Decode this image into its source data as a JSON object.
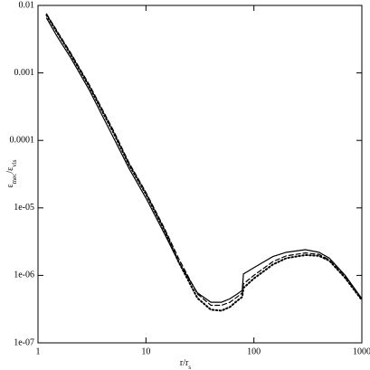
{
  "chart_data": {
    "type": "line",
    "xlabel": [
      "r/r",
      "s"
    ],
    "ylabel": [
      "ε",
      "mec",
      "/ε",
      "vis"
    ],
    "xscale": "log",
    "yscale": "log",
    "xlim": [
      1,
      1000
    ],
    "ylim": [
      1e-07,
      0.01
    ],
    "xticks": [
      1,
      10,
      100,
      1000
    ],
    "yticks": [
      0.01,
      0.001,
      0.0001,
      {
        "value": 1e-05,
        "label": "1e-05"
      },
      {
        "value": 1e-06,
        "label": "1e-06"
      },
      {
        "value": 1e-07,
        "label": "1e-07"
      }
    ],
    "x": [
      1.2,
      1.5,
      2,
      3,
      5,
      7,
      10,
      15,
      20,
      30,
      40,
      50,
      60,
      70,
      78,
      80,
      100,
      150,
      200,
      300,
      400,
      500,
      700,
      1000
    ],
    "series": [
      {
        "color": "#000000",
        "dash": "solid",
        "values": [
          0.0065,
          0.0035,
          0.0017,
          0.00055,
          0.00011,
          3.8e-05,
          1.4e-05,
          4e-06,
          1.6e-06,
          5.5e-07,
          4e-07,
          4e-07,
          4.5e-07,
          5.3e-07,
          6e-07,
          1.05e-06,
          1.3e-06,
          1.9e-06,
          2.2e-06,
          2.4e-06,
          2.2e-06,
          1.8e-06,
          1e-06,
          4.5e-07
        ]
      },
      {
        "color": "#000000",
        "dash": "dashed",
        "values": [
          0.0075,
          0.0042,
          0.002,
          0.00066,
          0.00014,
          4.6e-05,
          1.7e-05,
          4.8e-06,
          1.8e-06,
          5.3e-07,
          3.6e-07,
          3.6e-07,
          4e-07,
          4.8e-07,
          5.5e-07,
          7.5e-07,
          1e-06,
          1.6e-06,
          1.95e-06,
          2.15e-06,
          2.05e-06,
          1.7e-06,
          9.5e-07,
          4.4e-07
        ]
      },
      {
        "color": "#000000",
        "dash": "dotted",
        "values": [
          0.0072,
          0.004,
          0.0019,
          0.00062,
          0.00013,
          4.3e-05,
          1.6e-05,
          4.5e-06,
          1.6e-06,
          4.6e-07,
          3.1e-07,
          3e-07,
          3.4e-07,
          4.2e-07,
          4.8e-07,
          6.5e-07,
          9e-07,
          1.45e-06,
          1.8e-06,
          2e-06,
          1.95e-06,
          1.65e-06,
          9.2e-07,
          4.3e-07
        ]
      }
    ]
  }
}
